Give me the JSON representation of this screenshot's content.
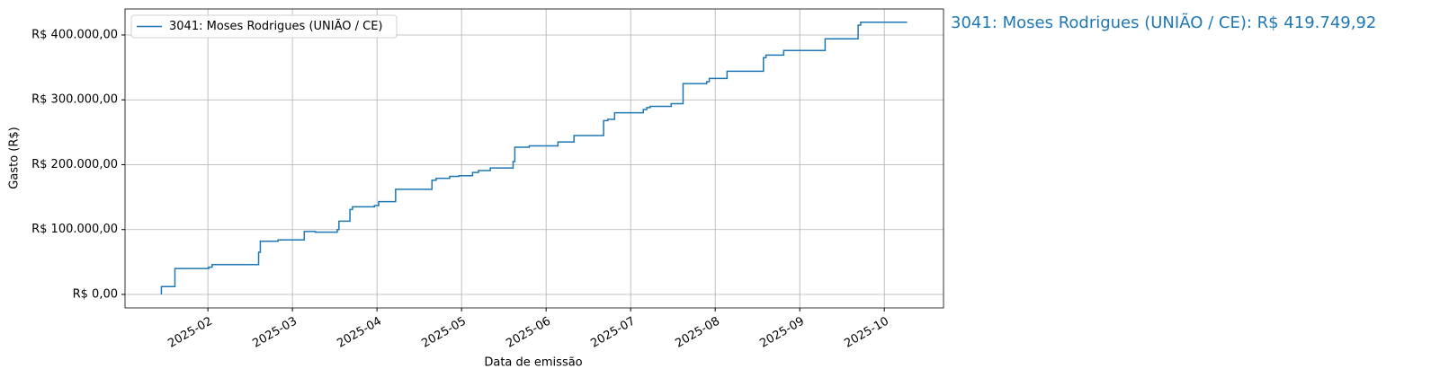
{
  "chart_data": {
    "type": "step",
    "xlabel": "Data de emissão",
    "ylabel": "Gasto (R$)",
    "annotation": "3041: Moses Rodrigues (UNIÃO / CE): R$ 419.749,92",
    "legend": "upper left",
    "grid": true,
    "xlim": [
      1.02,
      10.7
    ],
    "ylim": [
      -20800,
      440100
    ],
    "xticks": [
      {
        "value": 2,
        "label": "2025-02"
      },
      {
        "value": 3,
        "label": "2025-03"
      },
      {
        "value": 4,
        "label": "2025-04"
      },
      {
        "value": 5,
        "label": "2025-05"
      },
      {
        "value": 6,
        "label": "2025-06"
      },
      {
        "value": 7,
        "label": "2025-07"
      },
      {
        "value": 8,
        "label": "2025-08"
      },
      {
        "value": 9,
        "label": "2025-09"
      },
      {
        "value": 10,
        "label": "2025-10"
      }
    ],
    "yticks": [
      {
        "value": 0,
        "label": "R$ 0,00"
      },
      {
        "value": 100000,
        "label": "R$ 100.000,00"
      },
      {
        "value": 200000,
        "label": "R$ 200.000,00"
      },
      {
        "value": 300000,
        "label": "R$ 300.000,00"
      },
      {
        "value": 400000,
        "label": "R$ 400.000,00"
      }
    ],
    "series": [
      {
        "name": "3041: Moses Rodrigues (UNIÃO / CE)",
        "color": "#1f77b4",
        "x": [
          1.45,
          1.45,
          1.61,
          2.01,
          2.05,
          2.6,
          2.62,
          2.83,
          3.14,
          3.27,
          3.53,
          3.55,
          3.68,
          3.71,
          3.97,
          4.02,
          4.22,
          4.65,
          4.7,
          4.86,
          4.97,
          5.13,
          5.2,
          5.34,
          5.61,
          5.63,
          5.8,
          6.14,
          6.33,
          6.68,
          6.73,
          6.81,
          7.15,
          7.19,
          7.23,
          7.48,
          7.62,
          7.9,
          7.93,
          8.14,
          8.57,
          8.6,
          8.81,
          9.3,
          9.69,
          9.72,
          10.27
        ],
        "values": [
          0,
          12000,
          40000,
          42000,
          46000,
          65000,
          82000,
          84000,
          97000,
          96000,
          100000,
          113000,
          131000,
          135000,
          137000,
          143000,
          162000,
          176000,
          179000,
          182000,
          183000,
          188000,
          191000,
          195000,
          205000,
          227000,
          229000,
          235000,
          245000,
          268000,
          270000,
          280000,
          285000,
          288000,
          290000,
          294000,
          325000,
          328000,
          333000,
          344000,
          365000,
          369000,
          376000,
          394000,
          415000,
          419749.92,
          419749.92
        ]
      }
    ]
  }
}
